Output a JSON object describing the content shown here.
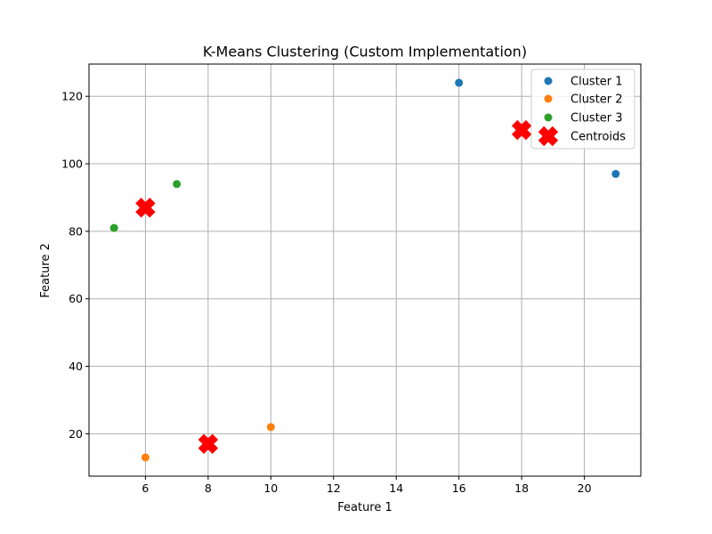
{
  "chart_data": {
    "type": "scatter",
    "title": "K-Means Clustering (Custom Implementation)",
    "xlabel": "Feature 1",
    "ylabel": "Feature 2",
    "xlim": [
      4.2,
      21.8
    ],
    "ylim": [
      7.45,
      129.55
    ],
    "xticks": [
      6,
      8,
      10,
      12,
      14,
      16,
      18,
      20
    ],
    "yticks": [
      20,
      40,
      60,
      80,
      100,
      120
    ],
    "grid": true,
    "legend": "top-right",
    "series": [
      {
        "name": "Cluster 1",
        "color": "#1f77b4",
        "marker": "circle",
        "x": [
          16,
          21
        ],
        "y": [
          124,
          97
        ]
      },
      {
        "name": "Cluster 2",
        "color": "#ff7f0e",
        "marker": "circle",
        "x": [
          6,
          10
        ],
        "y": [
          13,
          22
        ]
      },
      {
        "name": "Cluster 3",
        "color": "#2ca02c",
        "marker": "circle",
        "x": [
          7,
          5
        ],
        "y": [
          94,
          81
        ]
      },
      {
        "name": "Centroids",
        "color": "#ff0000",
        "marker": "x",
        "x": [
          18,
          6,
          8
        ],
        "y": [
          110,
          87,
          17
        ]
      }
    ]
  }
}
